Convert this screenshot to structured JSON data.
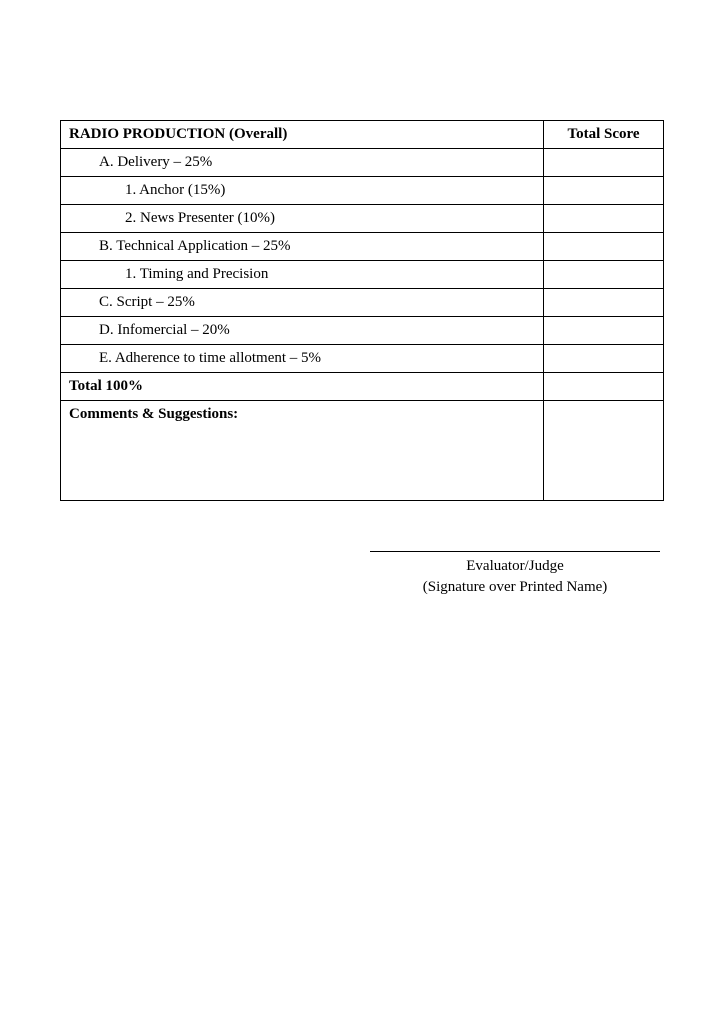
{
  "table": {
    "header_left": "RADIO PRODUCTION (Overall)",
    "header_right": "Total Score",
    "rows": [
      {
        "label": "A.  Delivery – 25%",
        "indent": 1
      },
      {
        "label": "1.  Anchor (15%)",
        "indent": 2
      },
      {
        "label": "2.  News Presenter (10%)",
        "indent": 2
      },
      {
        "label": "B.  Technical Application – 25%",
        "indent": 1
      },
      {
        "label": "1.  Timing and Precision",
        "indent": 2
      },
      {
        "label": "C.  Script – 25%",
        "indent": 1
      },
      {
        "label": "D.  Infomercial – 20%",
        "indent": 1
      },
      {
        "label": "E.  Adherence to time allotment – 5%",
        "indent": 1
      }
    ],
    "total_label": "Total 100%",
    "comments_label": "Comments & Suggestions:"
  },
  "signature": {
    "line1": "Evaluator/Judge",
    "line2": "(Signature over Printed Name)"
  },
  "style": {
    "font_family": "Georgia, 'Times New Roman', serif",
    "font_size_body": 15,
    "border_color": "#000000",
    "background_color": "#ffffff",
    "text_color": "#000000",
    "table_border_width": 1.5,
    "cell_border_width": 1,
    "score_column_width": 120,
    "comments_row_height": 100
  }
}
